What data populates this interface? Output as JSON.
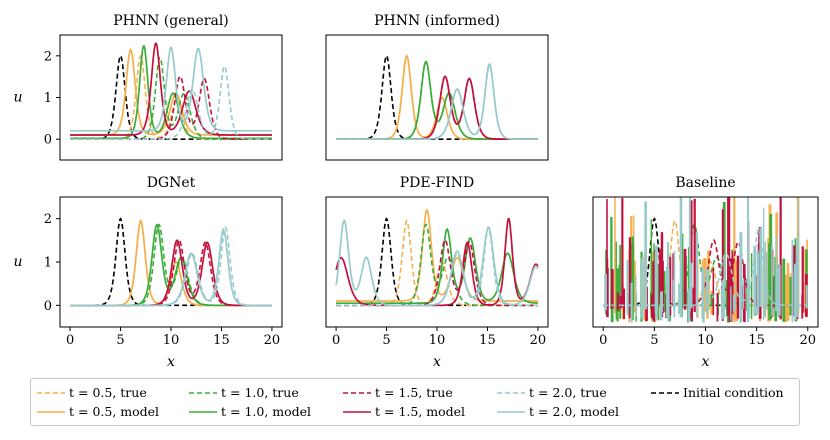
{
  "figure": {
    "x_axis_label": "x",
    "y_axis_label": "u"
  },
  "colors": {
    "t05": "#F5B04B",
    "t10": "#3AAD3A",
    "t15": "#C4103E",
    "t20": "#96CACB",
    "initial": "#000000"
  },
  "legend": {
    "entries": [
      {
        "key": "t05_true",
        "label": "t = 0.5, true",
        "color": "#F5B04B",
        "dash": true
      },
      {
        "key": "t05_model",
        "label": "t = 0.5, model",
        "color": "#F5B04B",
        "dash": false
      },
      {
        "key": "t10_true",
        "label": "t = 1.0, true",
        "color": "#3AAD3A",
        "dash": true
      },
      {
        "key": "t10_model",
        "label": "t = 1.0, model",
        "color": "#3AAD3A",
        "dash": false
      },
      {
        "key": "t15_true",
        "label": "t = 1.5, true",
        "color": "#C4103E",
        "dash": true
      },
      {
        "key": "t15_model",
        "label": "t = 1.5, model",
        "color": "#C4103E",
        "dash": false
      },
      {
        "key": "t20_true",
        "label": "t = 2.0, true",
        "color": "#96CACB",
        "dash": true
      },
      {
        "key": "t20_model",
        "label": "t = 2.0, model",
        "color": "#96CACB",
        "dash": false
      },
      {
        "key": "initial",
        "label": "Initial condition",
        "color": "#000000",
        "dash": true
      }
    ]
  },
  "chart_data": [
    {
      "type": "line",
      "title": "PHNN (general)",
      "xlabel": "",
      "ylabel": "u",
      "xlim": [
        -1,
        21
      ],
      "ylim": [
        -0.5,
        2.5
      ],
      "xticks": [],
      "yticks": [
        0,
        1,
        2
      ],
      "series": [
        {
          "name": "Initial condition",
          "style": "dashed",
          "color": "initial",
          "peaks": [
            [
              5,
              2.0,
              0.6
            ]
          ],
          "base": 0
        },
        {
          "name": "t = 0.5, true",
          "style": "dashed",
          "color": "t05",
          "peaks": [
            [
              7.0,
              2.0,
              0.6
            ],
            [
              10.6,
              1.0,
              0.7
            ]
          ],
          "base": 0
        },
        {
          "name": "t = 0.5, model",
          "style": "solid",
          "color": "t05",
          "peaks": [
            [
              6.0,
              2.05,
              0.6
            ],
            [
              10.5,
              1.0,
              0.8
            ]
          ],
          "base": 0.1
        },
        {
          "name": "t = 1.0, true",
          "style": "dashed",
          "color": "t10",
          "peaks": [
            [
              8.9,
              1.95,
              0.6
            ],
            [
              11.3,
              1.1,
              0.8
            ]
          ],
          "base": 0
        },
        {
          "name": "t = 1.0, model",
          "style": "solid",
          "color": "t10",
          "peaks": [
            [
              7.3,
              2.22,
              0.55
            ],
            [
              10.2,
              1.08,
              0.8
            ]
          ],
          "base": 0.02
        },
        {
          "name": "t = 1.5, true",
          "style": "dashed",
          "color": "t15",
          "peaks": [
            [
              10.9,
              1.5,
              0.7
            ],
            [
              13.3,
              1.45,
              0.7
            ]
          ],
          "base": 0
        },
        {
          "name": "t = 1.5, model",
          "style": "solid",
          "color": "t15",
          "peaks": [
            [
              8.5,
              2.2,
              0.6
            ],
            [
              11.8,
              1.05,
              0.9
            ]
          ],
          "base": 0.1
        },
        {
          "name": "t = 2.0, true",
          "style": "dashed",
          "color": "t20",
          "peaks": [
            [
              12.1,
              1.2,
              0.8
            ],
            [
              15.3,
              1.75,
              0.6
            ]
          ],
          "base": 0
        },
        {
          "name": "t = 2.0, model",
          "style": "solid",
          "color": "t20",
          "peaks": [
            [
              10.0,
              2.0,
              0.6
            ],
            [
              12.7,
              1.97,
              0.7
            ]
          ],
          "base": 0.2
        }
      ]
    },
    {
      "type": "line",
      "title": "PHNN (informed)",
      "xlabel": "",
      "ylabel": "",
      "xlim": [
        -1,
        21
      ],
      "ylim": [
        -0.5,
        2.5
      ],
      "xticks": [],
      "yticks": [],
      "series": [
        {
          "name": "Initial condition",
          "style": "dashed",
          "color": "initial",
          "peaks": [
            [
              5,
              2.0,
              0.6
            ]
          ],
          "base": 0
        },
        {
          "name": "t = 0.5, true",
          "style": "dashed",
          "color": "t05",
          "peaks": [
            [
              7.0,
              2.0,
              0.6
            ],
            [
              10.5,
              1.0,
              0.7
            ]
          ],
          "base": 0
        },
        {
          "name": "t = 0.5, model",
          "style": "solid",
          "color": "t05",
          "peaks": [
            [
              7.0,
              2.0,
              0.6
            ],
            [
              10.5,
              1.0,
              0.7
            ]
          ],
          "base": 0
        },
        {
          "name": "t = 1.0, true",
          "style": "dashed",
          "color": "t10",
          "peaks": [
            [
              8.9,
              1.85,
              0.65
            ],
            [
              11.2,
              1.1,
              0.8
            ]
          ],
          "base": 0
        },
        {
          "name": "t = 1.0, model",
          "style": "solid",
          "color": "t10",
          "peaks": [
            [
              8.9,
              1.85,
              0.65
            ],
            [
              11.2,
              1.1,
              0.8
            ]
          ],
          "base": 0
        },
        {
          "name": "t = 1.5, true",
          "style": "dashed",
          "color": "t15",
          "peaks": [
            [
              10.8,
              1.5,
              0.7
            ],
            [
              13.2,
              1.45,
              0.7
            ]
          ],
          "base": 0
        },
        {
          "name": "t = 1.5, model",
          "style": "solid",
          "color": "t15",
          "peaks": [
            [
              10.8,
              1.5,
              0.7
            ],
            [
              13.2,
              1.45,
              0.7
            ]
          ],
          "base": 0
        },
        {
          "name": "t = 2.0, true",
          "style": "dashed",
          "color": "t20",
          "peaks": [
            [
              12.0,
              1.2,
              0.8
            ],
            [
              15.2,
              1.8,
              0.6
            ]
          ],
          "base": 0
        },
        {
          "name": "t = 2.0, model",
          "style": "solid",
          "color": "t20",
          "peaks": [
            [
              12.0,
              1.2,
              0.8
            ],
            [
              15.2,
              1.8,
              0.6
            ]
          ],
          "base": 0
        }
      ]
    },
    {
      "type": "line",
      "title": "DGNet",
      "xlabel": "x",
      "ylabel": "u",
      "xlim": [
        -1,
        21
      ],
      "ylim": [
        -0.5,
        2.5
      ],
      "xticks": [
        0,
        5,
        10,
        15,
        20
      ],
      "yticks": [
        0,
        1,
        2
      ],
      "series": [
        {
          "name": "Initial condition",
          "style": "dashed",
          "color": "initial",
          "peaks": [
            [
              5,
              2.0,
              0.6
            ]
          ],
          "base": 0
        },
        {
          "name": "t = 0.5, true",
          "style": "dashed",
          "color": "t05",
          "peaks": [
            [
              7.0,
              1.95,
              0.6
            ],
            [
              10.5,
              1.0,
              0.7
            ]
          ],
          "base": 0
        },
        {
          "name": "t = 0.5, model",
          "style": "solid",
          "color": "t05",
          "peaks": [
            [
              7.0,
              1.95,
              0.6
            ],
            [
              10.5,
              1.0,
              0.7
            ]
          ],
          "base": 0
        },
        {
          "name": "t = 1.0, true",
          "style": "dashed",
          "color": "t10",
          "peaks": [
            [
              8.8,
              1.85,
              0.65
            ],
            [
              11.1,
              1.1,
              0.8
            ]
          ],
          "base": 0
        },
        {
          "name": "t = 1.0, model",
          "style": "solid",
          "color": "t10",
          "peaks": [
            [
              8.6,
              1.85,
              0.65
            ],
            [
              11.0,
              1.1,
              0.8
            ]
          ],
          "base": 0
        },
        {
          "name": "t = 1.5, true",
          "style": "dashed",
          "color": "t15",
          "peaks": [
            [
              10.8,
              1.5,
              0.7
            ],
            [
              13.4,
              1.45,
              0.7
            ]
          ],
          "base": 0
        },
        {
          "name": "t = 1.5, model",
          "style": "solid",
          "color": "t15",
          "peaks": [
            [
              10.6,
              1.5,
              0.7
            ],
            [
              13.6,
              1.45,
              0.7
            ]
          ],
          "base": 0
        },
        {
          "name": "t = 2.0, true",
          "style": "dashed",
          "color": "t20",
          "peaks": [
            [
              12.1,
              1.2,
              0.8
            ],
            [
              15.4,
              1.8,
              0.6
            ]
          ],
          "base": 0
        },
        {
          "name": "t = 2.0, model",
          "style": "solid",
          "color": "t20",
          "peaks": [
            [
              12.0,
              1.2,
              0.8
            ],
            [
              15.2,
              1.75,
              0.6
            ]
          ],
          "base": 0
        }
      ]
    },
    {
      "type": "line",
      "title": "PDE-FIND",
      "xlabel": "x",
      "ylabel": "",
      "xlim": [
        -1,
        21
      ],
      "ylim": [
        -0.5,
        2.5
      ],
      "xticks": [
        0,
        5,
        10,
        15,
        20
      ],
      "yticks": [],
      "series": [
        {
          "name": "Initial condition",
          "style": "dashed",
          "color": "initial",
          "peaks": [
            [
              5,
              2.0,
              0.6
            ]
          ],
          "base": 0
        },
        {
          "name": "t = 0.5, true",
          "style": "dashed",
          "color": "t05",
          "peaks": [
            [
              7.0,
              1.95,
              0.6
            ],
            [
              10.5,
              1.0,
              0.7
            ]
          ],
          "base": 0
        },
        {
          "name": "t = 0.5, model",
          "style": "solid",
          "color": "t05",
          "peaks": [
            [
              9.0,
              2.1,
              0.6
            ],
            [
              12.0,
              1.0,
              0.8
            ]
          ],
          "base": 0.1
        },
        {
          "name": "t = 1.0, true",
          "style": "dashed",
          "color": "t10",
          "peaks": [
            [
              8.9,
              1.85,
              0.65
            ],
            [
              11.1,
              1.1,
              0.8
            ]
          ],
          "base": 0
        },
        {
          "name": "t = 1.0, model",
          "style": "solid",
          "color": "t10",
          "peaks": [
            [
              11.0,
              1.7,
              0.6
            ],
            [
              13.3,
              1.5,
              0.7
            ],
            [
              17.0,
              1.15,
              0.8
            ]
          ],
          "base": 0.05
        },
        {
          "name": "t = 1.5, true",
          "style": "dashed",
          "color": "t15",
          "peaks": [
            [
              10.8,
              1.5,
              0.7
            ],
            [
              13.2,
              1.45,
              0.7
            ]
          ],
          "base": 0
        },
        {
          "name": "t = 1.5, model",
          "style": "solid",
          "color": "t15",
          "peaks": [
            [
              0.5,
              1.1,
              0.9
            ],
            [
              13.0,
              1.45,
              0.6
            ],
            [
              17.1,
              2.0,
              0.5
            ],
            [
              19.8,
              0.95,
              0.8
            ]
          ],
          "base": 0
        },
        {
          "name": "t = 2.0, true",
          "style": "dashed",
          "color": "t20",
          "peaks": [
            [
              12.0,
              1.2,
              0.8
            ],
            [
              15.1,
              1.8,
              0.6
            ]
          ],
          "base": 0
        },
        {
          "name": "t = 2.0, model",
          "style": "solid",
          "color": "t20",
          "peaks": [
            [
              0.8,
              1.95,
              0.6
            ],
            [
              3.0,
              1.1,
              0.7
            ],
            [
              12.0,
              1.25,
              0.8
            ],
            [
              15.1,
              1.8,
              0.7
            ],
            [
              19.8,
              0.9,
              0.8
            ]
          ],
          "base": 0
        }
      ]
    },
    {
      "type": "line",
      "title": "Baseline",
      "xlabel": "x",
      "ylabel": "",
      "xlim": [
        -1,
        21
      ],
      "ylim": [
        -0.5,
        2.5
      ],
      "xticks": [
        0,
        5,
        10,
        15,
        20
      ],
      "yticks": [],
      "series": [
        {
          "name": "Initial condition",
          "style": "dashed",
          "color": "initial",
          "peaks": [
            [
              5,
              2.0,
              0.6
            ]
          ],
          "base": 0
        },
        {
          "name": "t = 0.5, true",
          "style": "dashed",
          "color": "t05",
          "peaks": [
            [
              7.0,
              1.95,
              0.6
            ],
            [
              10.5,
              1.0,
              0.7
            ]
          ],
          "base": 0
        },
        {
          "name": "t = 0.5, model",
          "style": "noise",
          "color": "t05",
          "seed": 11
        },
        {
          "name": "t = 1.0, true",
          "style": "dashed",
          "color": "t10",
          "peaks": [
            [
              8.9,
              1.85,
              0.65
            ],
            [
              11.1,
              1.1,
              0.8
            ]
          ],
          "base": 0
        },
        {
          "name": "t = 1.0, model",
          "style": "noise",
          "color": "t10",
          "seed": 23
        },
        {
          "name": "t = 1.5, true",
          "style": "dashed",
          "color": "t15",
          "peaks": [
            [
              10.8,
              1.5,
              0.7
            ],
            [
              13.2,
              1.45,
              0.7
            ]
          ],
          "base": 0
        },
        {
          "name": "t = 1.5, model",
          "style": "noise",
          "color": "t15",
          "seed": 37
        },
        {
          "name": "t = 2.0, true",
          "style": "dashed",
          "color": "t20",
          "peaks": [
            [
              12.0,
              1.2,
              0.8
            ],
            [
              15.2,
              1.75,
              0.6
            ]
          ],
          "base": 0
        },
        {
          "name": "t = 2.0, model",
          "style": "noise",
          "color": "t20",
          "seed": 51
        }
      ]
    }
  ]
}
